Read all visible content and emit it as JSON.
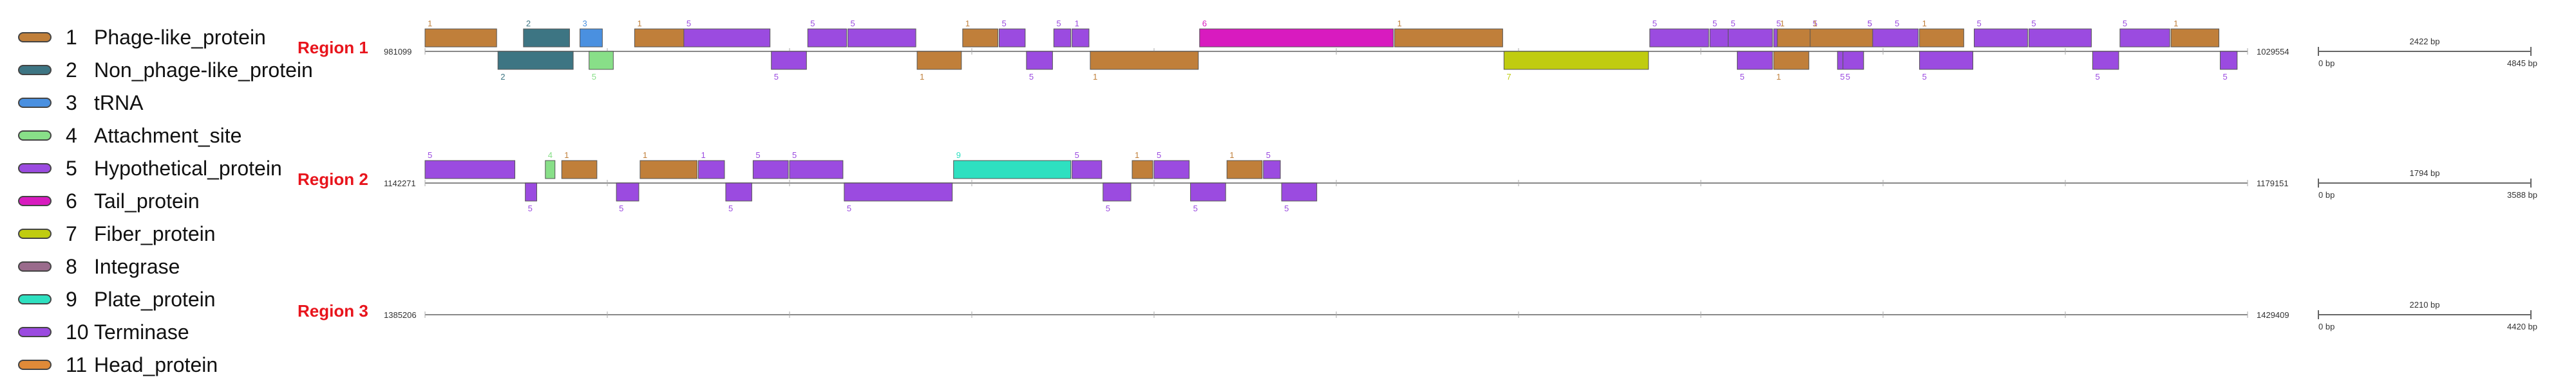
{
  "legend": [
    {
      "num": "1",
      "label": "Phage-like_protein",
      "color": "#c07f3a"
    },
    {
      "num": "2",
      "label": "Non_phage-like_protein",
      "color": "#3d7583"
    },
    {
      "num": "3",
      "label": "tRNA",
      "color": "#4a90e0"
    },
    {
      "num": "4",
      "label": "Attachment_site",
      "color": "#88df88"
    },
    {
      "num": "5",
      "label": "Hypothetical_protein",
      "color": "#9b4be0"
    },
    {
      "num": "6",
      "label": "Tail_protein",
      "color": "#d81bbf"
    },
    {
      "num": "7",
      "label": "Fiber_protein",
      "color": "#c0cc10"
    },
    {
      "num": "8",
      "label": "Integrase",
      "color": "#9a6b8c"
    },
    {
      "num": "9",
      "label": "Plate_protein",
      "color": "#2ee0c0"
    },
    {
      "num": "10",
      "label": "Terminase",
      "color": "#9b4be0"
    },
    {
      "num": "11",
      "label": "Head_protein",
      "color": "#e08a38"
    }
  ],
  "regions": [
    {
      "name": "Region 1",
      "start": "981099",
      "end": "1029554",
      "scale_len": "2422 bp",
      "scale_start": "0 bp",
      "scale_end": "4845 bp",
      "genes": [
        [
          0.0,
          0.04,
          1,
          "1"
        ],
        [
          0.04,
          0.082,
          2,
          "2"
        ],
        [
          0.054,
          0.08,
          2,
          "2"
        ],
        [
          0.085,
          0.098,
          3,
          "3"
        ],
        [
          0.09,
          0.104,
          4,
          "5"
        ],
        [
          0.115,
          0.15,
          1,
          "1"
        ],
        [
          0.142,
          0.19,
          5,
          "5"
        ],
        [
          0.19,
          0.21,
          5,
          "5"
        ],
        [
          0.21,
          0.232,
          5,
          "5"
        ],
        [
          0.232,
          0.27,
          5,
          "5"
        ],
        [
          0.27,
          0.295,
          1,
          "1"
        ],
        [
          0.295,
          0.315,
          1,
          "1"
        ],
        [
          0.315,
          0.33,
          5,
          "5"
        ],
        [
          0.33,
          0.345,
          5,
          "5"
        ],
        [
          0.345,
          0.355,
          5,
          "5"
        ],
        [
          0.355,
          0.365,
          5,
          "1"
        ],
        [
          0.365,
          0.425,
          1,
          "1"
        ],
        [
          0.425,
          0.532,
          6,
          "6"
        ],
        [
          0.532,
          0.592,
          1,
          "1"
        ],
        [
          0.592,
          0.672,
          7,
          "7"
        ],
        [
          0.672,
          0.705,
          5,
          "5"
        ],
        [
          0.705,
          0.72,
          5,
          "5"
        ],
        [
          0.72,
          0.74,
          5,
          "5"
        ],
        [
          0.74,
          0.76,
          5,
          "5"
        ],
        [
          0.76,
          0.775,
          5,
          "5"
        ],
        [
          0.775,
          0.79,
          5,
          "5"
        ],
        [
          0.79,
          0.805,
          5,
          "5"
        ],
        [
          0.805,
          0.82,
          5,
          "5"
        ],
        [
          0.82,
          0.85,
          5,
          "5"
        ],
        [
          0.85,
          0.88,
          5,
          "5"
        ],
        [
          0.88,
          0.915,
          5,
          "5"
        ],
        [
          0.915,
          0.93,
          5,
          "5"
        ],
        [
          0.93,
          0.958,
          5,
          "5"
        ],
        [
          0.958,
          0.985,
          1,
          "1"
        ],
        [
          0.985,
          0.995,
          5,
          "5"
        ],
        [
          0.715,
          0.74,
          5,
          "5"
        ],
        [
          0.742,
          0.775,
          1,
          "1"
        ],
        [
          0.778,
          0.79,
          5,
          "5"
        ],
        [
          0.79,
          0.82,
          5,
          "5"
        ],
        [
          0.82,
          0.845,
          1,
          "1"
        ],
        [
          0.74,
          0.76,
          1,
          "1"
        ],
        [
          0.76,
          0.795,
          1,
          "1"
        ]
      ]
    },
    {
      "name": "Region 2",
      "start": "1142271",
      "end": "1179151",
      "scale_len": "1794 bp",
      "scale_start": "0 bp",
      "scale_end": "3588 bp",
      "genes": [
        [
          0.0,
          0.05,
          5,
          "5"
        ],
        [
          0.055,
          0.062,
          5,
          "5"
        ],
        [
          0.066,
          0.072,
          4,
          "4"
        ],
        [
          0.075,
          0.095,
          1,
          "1"
        ],
        [
          0.105,
          0.118,
          5,
          "5"
        ],
        [
          0.118,
          0.15,
          1,
          "1"
        ],
        [
          0.15,
          0.165,
          5,
          "1"
        ],
        [
          0.165,
          0.18,
          5,
          "5"
        ],
        [
          0.18,
          0.2,
          5,
          "5"
        ],
        [
          0.2,
          0.23,
          5,
          "5"
        ],
        [
          0.23,
          0.29,
          5,
          "5"
        ],
        [
          0.29,
          0.355,
          9,
          "9"
        ],
        [
          0.355,
          0.372,
          5,
          "5"
        ],
        [
          0.372,
          0.388,
          5,
          "5"
        ],
        [
          0.388,
          0.4,
          1,
          "1"
        ],
        [
          0.4,
          0.42,
          5,
          "5"
        ],
        [
          0.42,
          0.44,
          5,
          "5"
        ],
        [
          0.44,
          0.46,
          1,
          "1"
        ],
        [
          0.46,
          0.47,
          5,
          "5"
        ],
        [
          0.47,
          0.49,
          5,
          "5"
        ]
      ]
    },
    {
      "name": "Region 3",
      "start": "1385206",
      "end": "1429409",
      "scale_len": "2210 bp",
      "scale_start": "0 bp",
      "scale_end": "4420 bp",
      "genes": []
    }
  ]
}
